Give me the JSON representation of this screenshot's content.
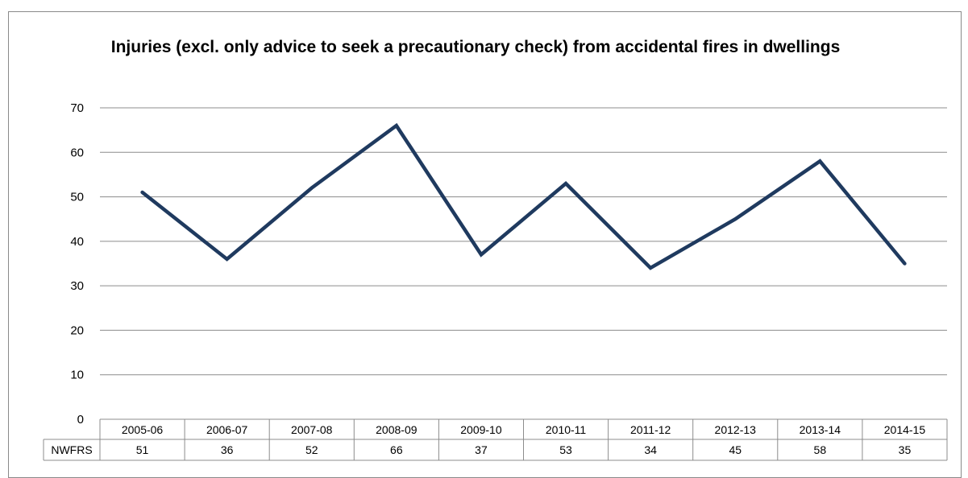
{
  "chart_data": {
    "type": "line",
    "title": "Injuries (excl. only advice to seek a precautionary check) from accidental fires in dwellings",
    "categories": [
      "2005-06",
      "2006-07",
      "2007-08",
      "2008-09",
      "2009-10",
      "2010-11",
      "2011-12",
      "2012-13",
      "2013-14",
      "2014-15"
    ],
    "series": [
      {
        "name": "NWFRS",
        "values": [
          51,
          36,
          52,
          66,
          37,
          53,
          34,
          45,
          58,
          35
        ],
        "color": "#1f3a5f"
      }
    ],
    "ylim": [
      0,
      70
    ],
    "yticks": [
      0,
      10,
      20,
      30,
      40,
      50,
      60,
      70
    ],
    "grid": true,
    "data_table": true
  }
}
